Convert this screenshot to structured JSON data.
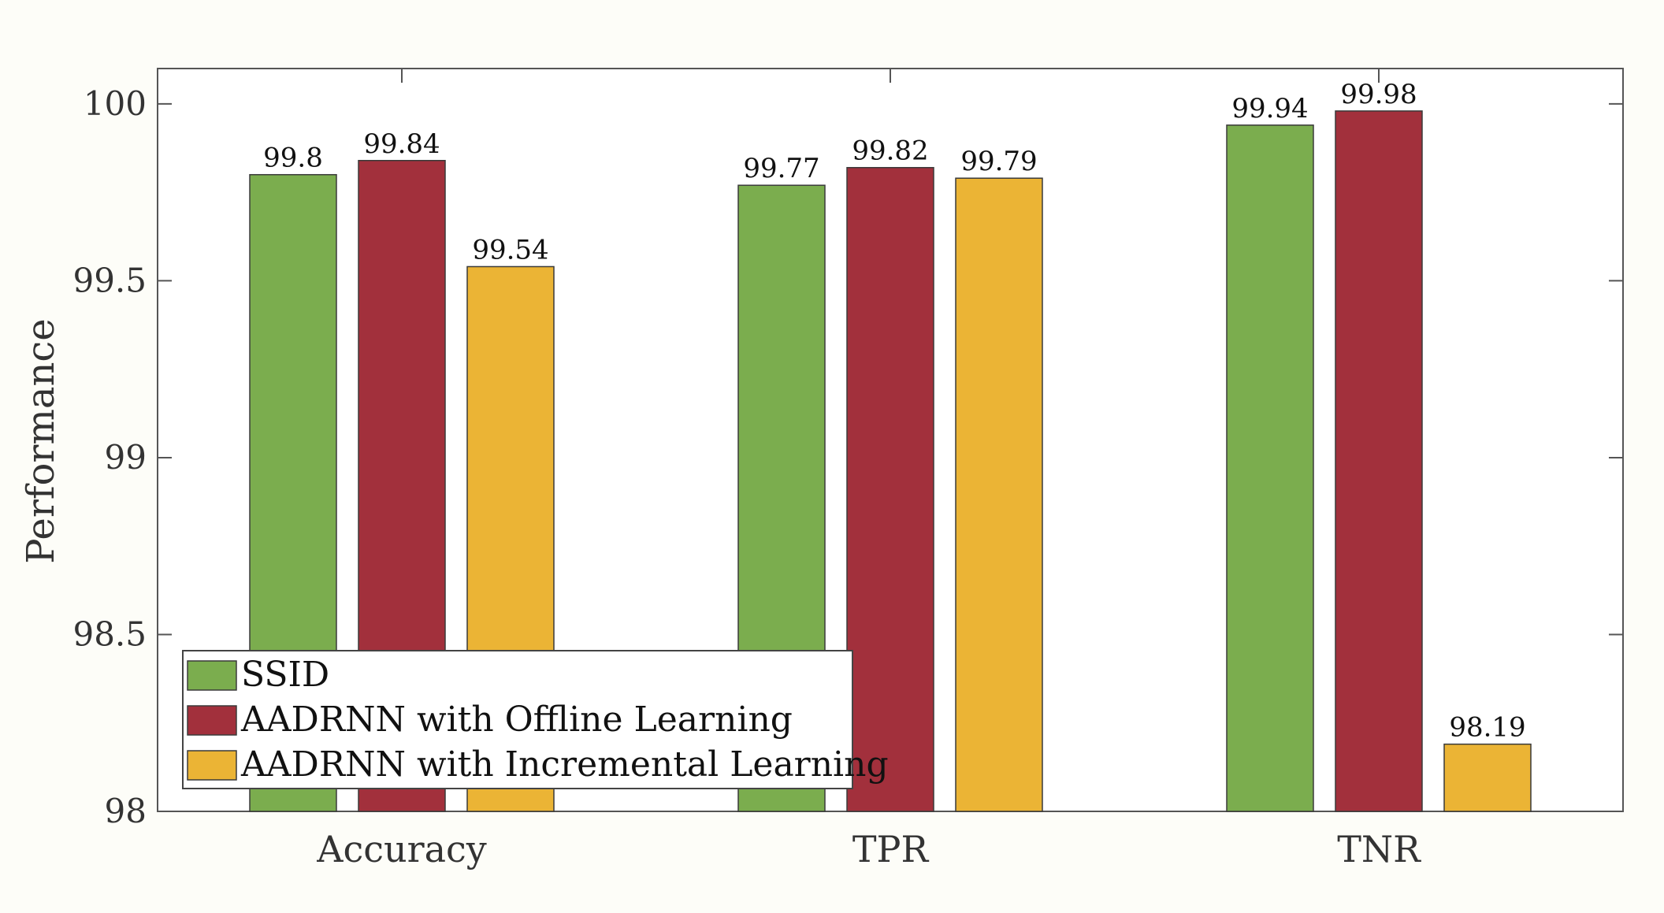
{
  "chart_data": {
    "type": "bar",
    "categories": [
      "Accuracy",
      "TPR",
      "TNR"
    ],
    "series": [
      {
        "name": "SSID",
        "color": "#7bad4e",
        "values": [
          99.8,
          99.77,
          99.94
        ]
      },
      {
        "name": "AADRNN with Offline Learning",
        "color": "#a2303c",
        "values": [
          99.84,
          99.82,
          99.98
        ]
      },
      {
        "name": "AADRNN with Incremental Learning",
        "color": "#ebb435",
        "values": [
          99.54,
          99.79,
          98.19
        ]
      }
    ],
    "title": "",
    "xlabel": "",
    "ylabel": "Performance",
    "ylim": [
      98,
      100.1
    ],
    "yticks": [
      98,
      98.5,
      99,
      99.5,
      100
    ],
    "ytick_labels": [
      "98",
      "98.5",
      "99",
      "99.5",
      "100"
    ],
    "legend_position": "bottom-left",
    "grid": false
  }
}
